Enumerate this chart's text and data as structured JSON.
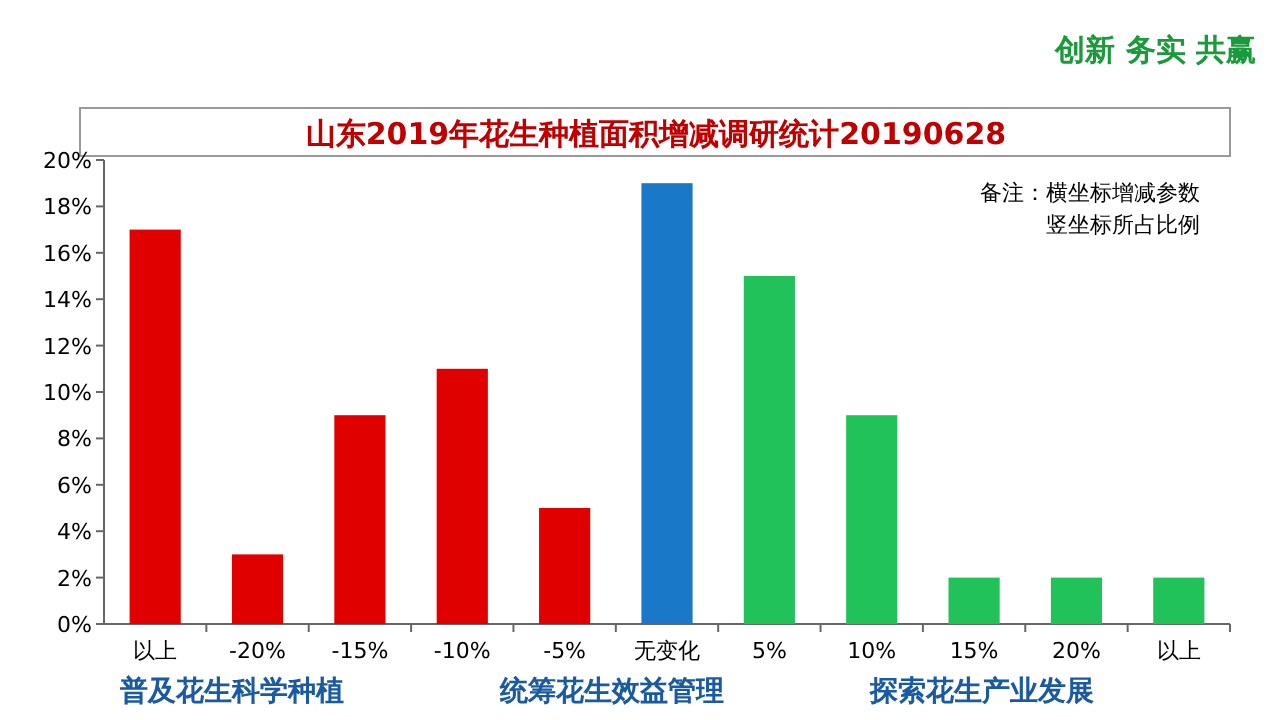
{
  "chart_data": {
    "type": "bar",
    "title": "山东2019年花生种植面积增减调研统计20190628",
    "categories": [
      "以上",
      "-20%",
      "-15%",
      "-10%",
      "-5%",
      "无变化",
      "5%",
      "10%",
      "15%",
      "20%",
      "以上"
    ],
    "values": [
      17,
      3,
      9,
      11,
      5,
      19,
      15,
      9,
      2,
      2,
      2
    ],
    "colors": [
      "#e00000",
      "#e00000",
      "#e00000",
      "#e00000",
      "#e00000",
      "#1a78c8",
      "#22c25a",
      "#22c25a",
      "#22c25a",
      "#22c25a",
      "#22c25a"
    ],
    "ylim": [
      0,
      20
    ],
    "yticks": [
      {
        "value": 0,
        "label": "0%"
      },
      {
        "value": 2,
        "label": "2%"
      },
      {
        "value": 4,
        "label": "4%"
      },
      {
        "value": 6,
        "label": "6%"
      },
      {
        "value": 8,
        "label": "8%"
      },
      {
        "value": 10,
        "label": "10%"
      },
      {
        "value": 12,
        "label": "12%"
      },
      {
        "value": 14,
        "label": "14%"
      },
      {
        "value": 16,
        "label": "16%"
      },
      {
        "value": 18,
        "label": "18%"
      },
      {
        "value": 20,
        "label": "20%"
      }
    ],
    "annotations": [
      "备注：横坐标增减参数",
      "竖坐标所占比例",
      "创新  务实  共赢",
      "普及花生科学种植",
      "统筹花生效益管理",
      "探索花生产业发展"
    ]
  }
}
